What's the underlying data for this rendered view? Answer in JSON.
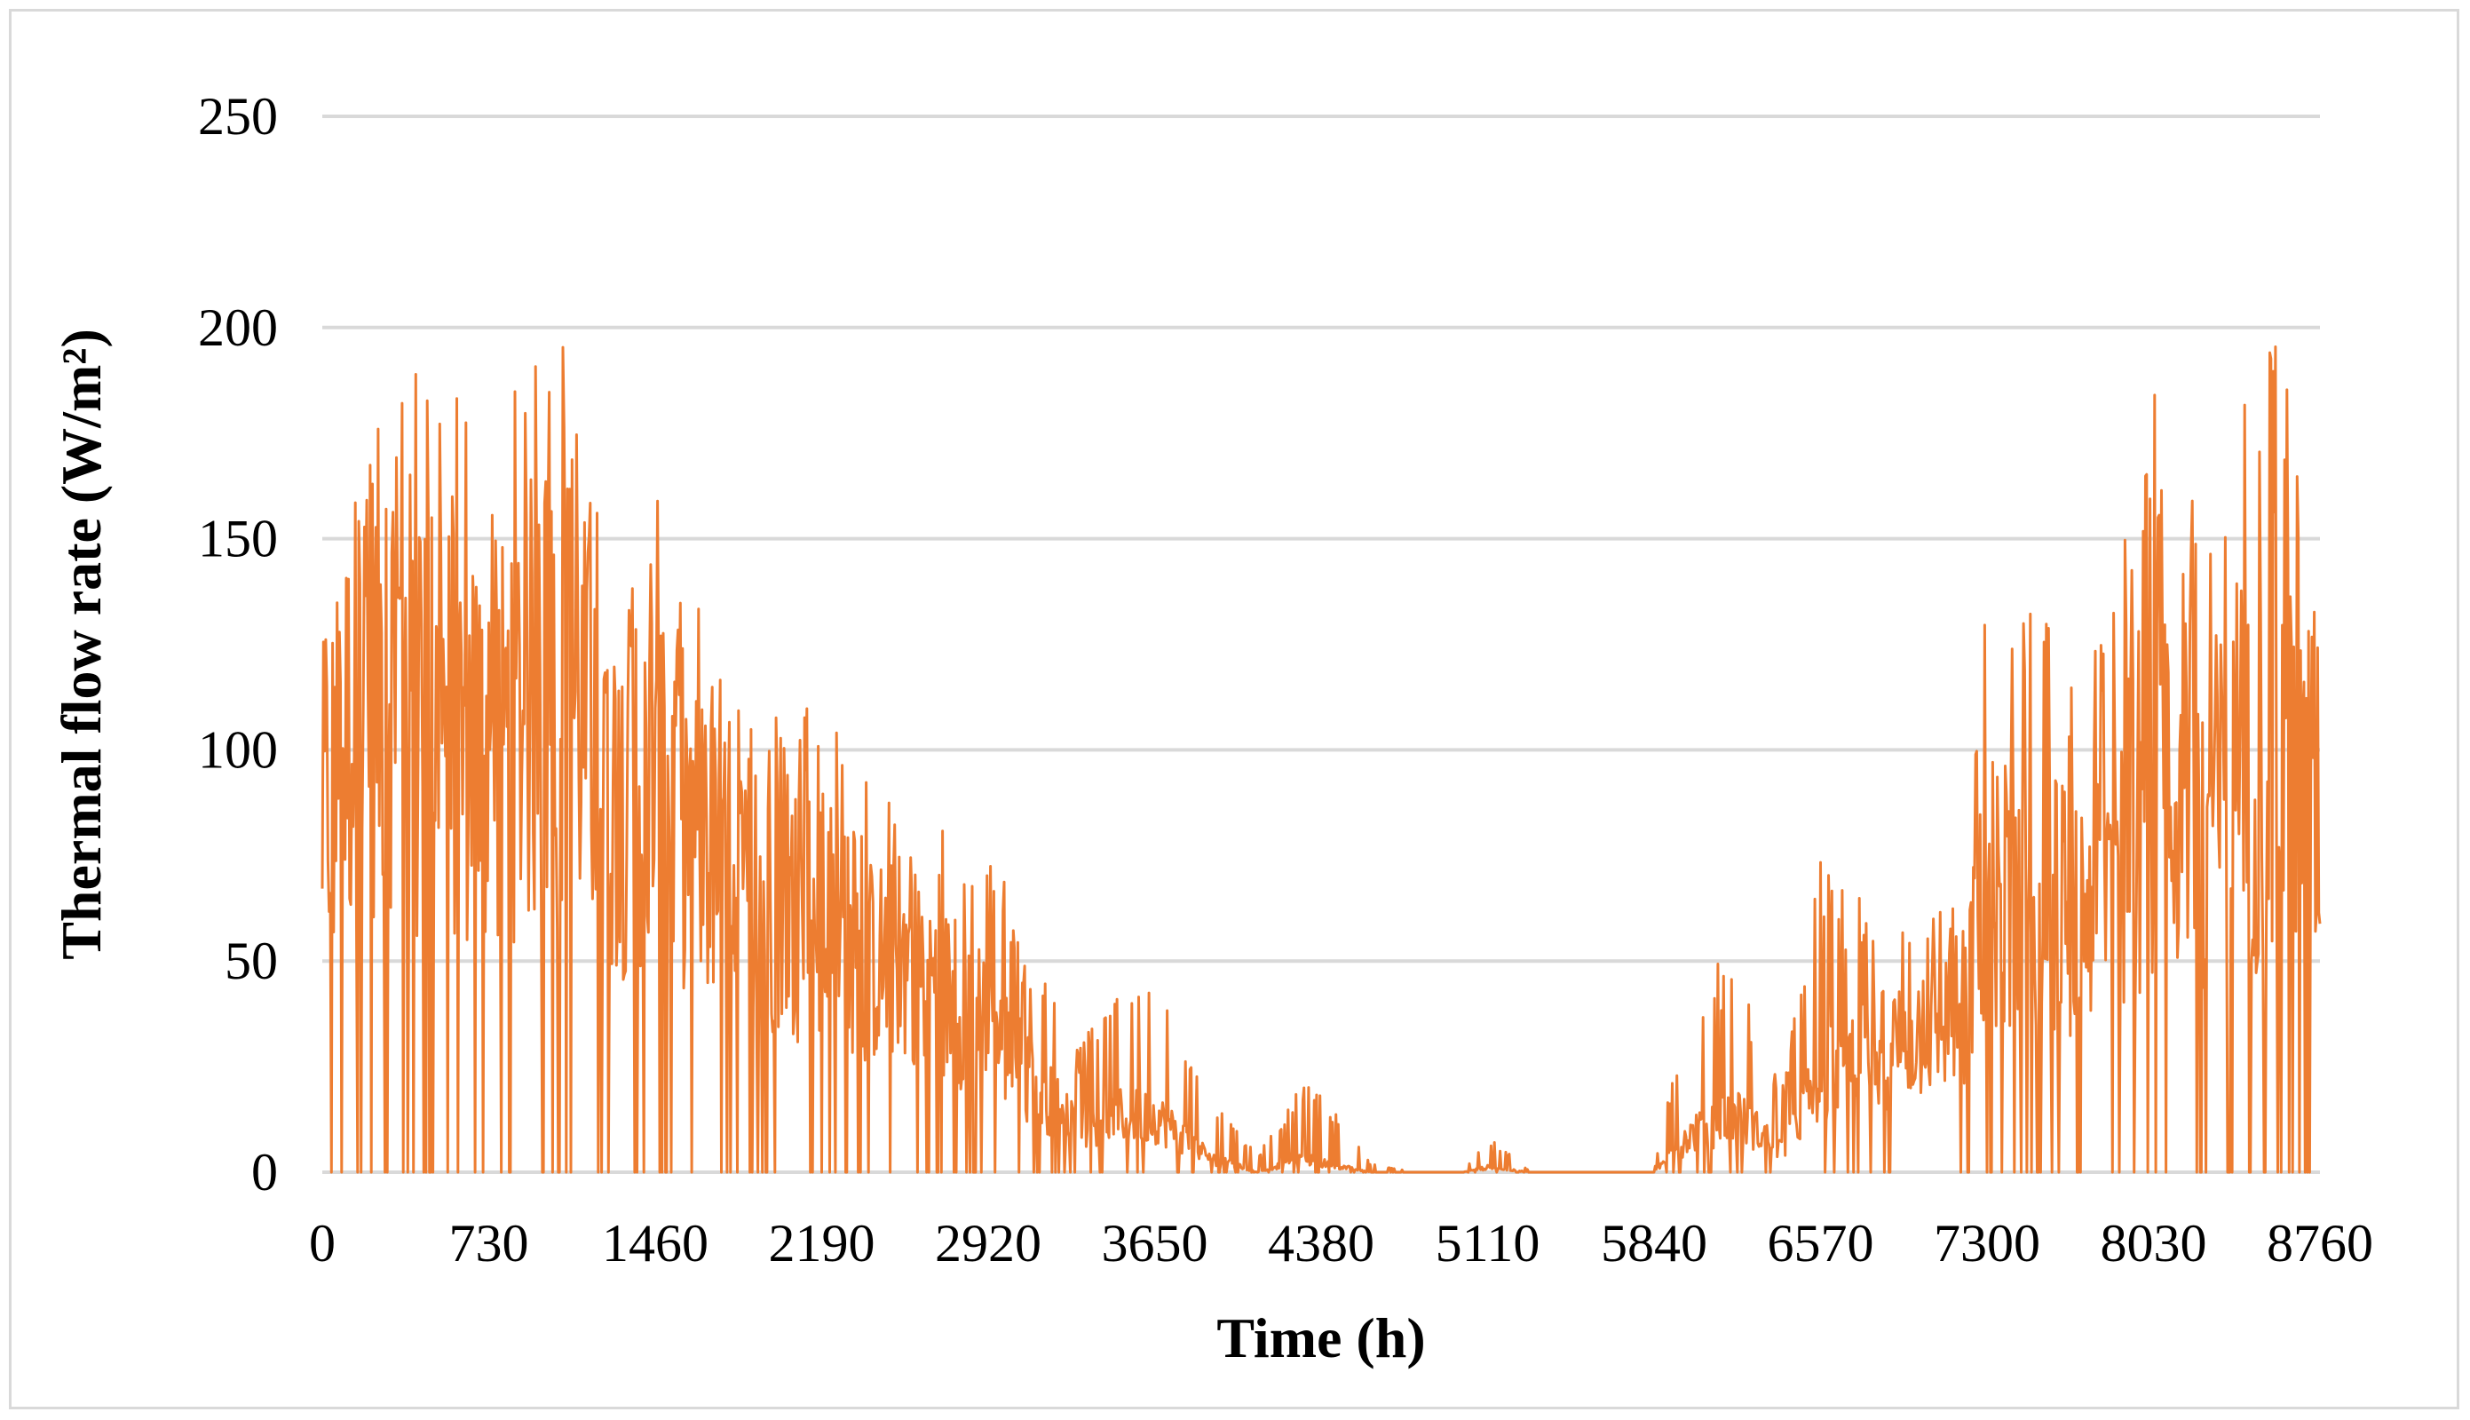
{
  "chart_data": {
    "type": "line",
    "xlabel": "Time (h)",
    "ylabel": "Thermal flow rate (W/m²)",
    "xlim": [
      0,
      8760
    ],
    "ylim": [
      0,
      250
    ],
    "x_ticks": [
      "0",
      "730",
      "1460",
      "2190",
      "2920",
      "3650",
      "4380",
      "5110",
      "5840",
      "6570",
      "7300",
      "8030",
      "8760"
    ],
    "y_ticks": [
      "0",
      "50",
      "100",
      "150",
      "200",
      "250"
    ],
    "grid": "horizontal",
    "legend": "none",
    "series_color": "#ed7d31",
    "grid_color": "#d9d9d9",
    "envelope": {
      "x": [
        0,
        150,
        300,
        450,
        600,
        730,
        900,
        1100,
        1300,
        1460,
        1600,
        1800,
        2000,
        2190,
        2400,
        2600,
        2800,
        2920,
        3100,
        3300,
        3500,
        3650,
        3900,
        4100,
        4300,
        4380,
        4600,
        4800,
        5000,
        5110,
        5300,
        5500,
        5700,
        5840,
        6000,
        6200,
        6400,
        6570,
        6800,
        7000,
        7200,
        7300,
        7500,
        7700,
        7900,
        8030,
        8200,
        8400,
        8600,
        8760
      ],
      "max": [
        126,
        165,
        212,
        188,
        188,
        160,
        198,
        201,
        135,
        165,
        142,
        110,
        111,
        118,
        93,
        93,
        75,
        82,
        54,
        30,
        42,
        48,
        18,
        4,
        21,
        19,
        2,
        0,
        0,
        9,
        0,
        0,
        0,
        0,
        48,
        51,
        19,
        74,
        62,
        57,
        73,
        148,
        140,
        115,
        149,
        186,
        160,
        180,
        207,
        147
      ],
      "mid": [
        75,
        100,
        110,
        95,
        95,
        90,
        100,
        100,
        80,
        85,
        75,
        60,
        55,
        55,
        45,
        45,
        35,
        32,
        20,
        10,
        12,
        12,
        3,
        0,
        3,
        2,
        0,
        0,
        0,
        1,
        0,
        0,
        0,
        0,
        8,
        12,
        5,
        20,
        25,
        30,
        35,
        60,
        60,
        55,
        70,
        80,
        75,
        80,
        90,
        80
      ]
    }
  }
}
